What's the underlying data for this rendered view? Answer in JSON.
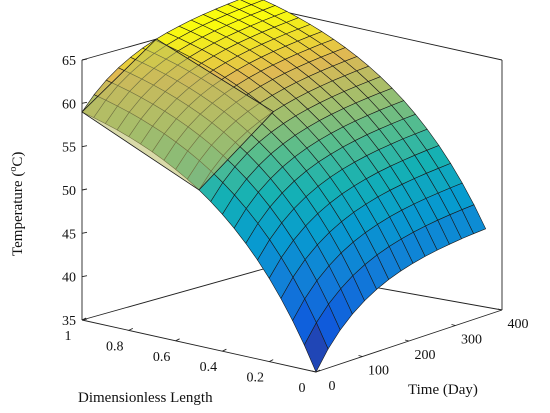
{
  "chart_data": {
    "type": "surface",
    "title": "",
    "xlabel": "Dimensionless Length",
    "ylabel": "Time (Day)",
    "zlabel": "Temperature (°C)",
    "zlabel_main": "Temperature (",
    "zlabel_sup": "o",
    "zlabel_tail": "C)",
    "x_ticks": [
      "0",
      "0.2",
      "0.4",
      "0.6",
      "0.8",
      "1"
    ],
    "y_ticks": [
      "0",
      "100",
      "200",
      "300",
      "400"
    ],
    "z_ticks": [
      "35",
      "40",
      "45",
      "50",
      "55",
      "60",
      "65"
    ],
    "xlim": [
      0,
      1
    ],
    "ylim": [
      0,
      400
    ],
    "zlim": [
      35,
      65
    ],
    "grid": false,
    "colormap": "parula",
    "surface_model": {
      "time_max_days": 365,
      "temperature_at_length_0": [
        35,
        45
      ],
      "temperature_at_length_1": [
        59,
        66
      ],
      "note_cutaway": "section between lengths 0.5 and 1 removed for early times, exposing an inner cross-section"
    }
  }
}
